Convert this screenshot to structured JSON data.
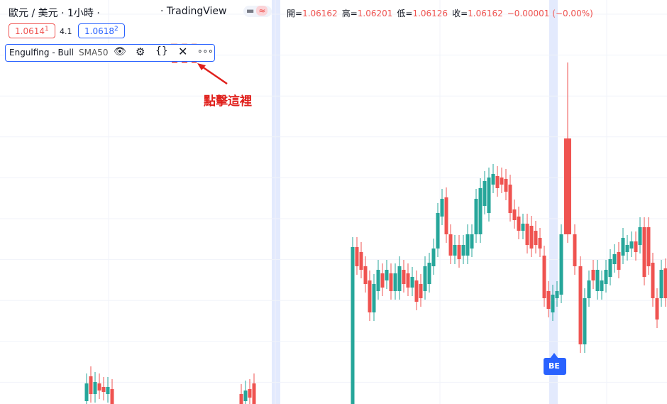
{
  "header": {
    "symbol": "歐元 / 美元 · 1小時 ·",
    "source": "· TradingView",
    "mode_icon": "≈",
    "ohlc": [
      {
        "label": "開=",
        "value": "1.06162"
      },
      {
        "label": "高=",
        "value": "1.06201"
      },
      {
        "label": "低=",
        "value": "1.06126"
      },
      {
        "label": "收=",
        "value": "1.06162"
      }
    ],
    "change": "−0.00001 (−0.00%)"
  },
  "quote": {
    "sell": {
      "price": "1.0614",
      "sup": "1"
    },
    "spread": "4.1",
    "buy": {
      "price": "1.0618",
      "sup": "2"
    }
  },
  "indicator": {
    "name": "Engulfing - Bull",
    "param": "SMA50"
  },
  "annotation": "點擊這裡",
  "marker": "BE"
}
